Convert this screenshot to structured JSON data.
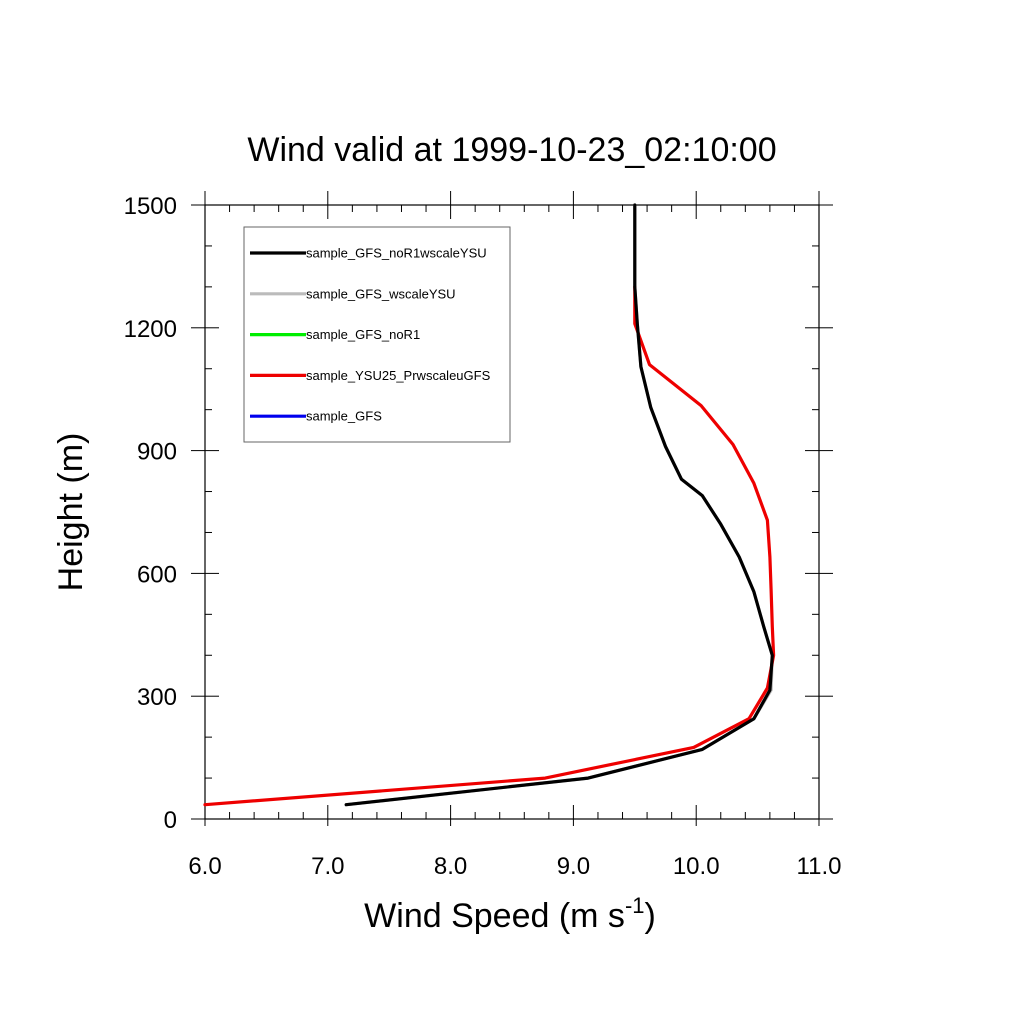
{
  "chart_data": {
    "type": "line",
    "title": "Wind valid at 1999-10-23_02:10:00",
    "xlabel": "Wind Speed (m s",
    "xlabel_superscript": "-1",
    "xlabel_suffix": ")",
    "ylabel": "Height (m)",
    "xlim": [
      6.0,
      11.0
    ],
    "ylim": [
      0,
      1500
    ],
    "xticks": [
      6.0,
      7.0,
      8.0,
      9.0,
      10.0,
      11.0
    ],
    "xtick_labels": [
      "6.0",
      "7.0",
      "8.0",
      "9.0",
      "10.0",
      "11.0"
    ],
    "yticks": [
      0,
      300,
      600,
      900,
      1200,
      1500
    ],
    "ytick_labels": [
      "0",
      "300",
      "600",
      "900",
      "1200",
      "1500"
    ],
    "grid": false,
    "legend_position": "top-left",
    "series": [
      {
        "name": "sample_GFS_noR1wscaleYSU",
        "color": "#000000",
        "x": [
          7.15,
          9.12,
          10.05,
          10.47,
          10.6,
          10.62,
          10.55,
          10.47,
          10.35,
          10.2,
          10.05,
          9.88,
          9.75,
          9.63,
          9.55,
          9.52,
          9.5,
          9.5,
          9.5
        ],
        "y": [
          35,
          100,
          170,
          245,
          315,
          400,
          470,
          555,
          640,
          720,
          790,
          830,
          910,
          1005,
          1105,
          1210,
          1300,
          1400,
          1500
        ]
      },
      {
        "name": "sample_GFS_wscaleYSU",
        "color": "#bbbbbb",
        "x": [
          7.15,
          9.12,
          10.05,
          10.47,
          10.61,
          10.62,
          10.55,
          10.47,
          10.35,
          10.2,
          10.05,
          9.88,
          9.75,
          9.63,
          9.55,
          9.52,
          9.5,
          9.5,
          9.5
        ],
        "y": [
          35,
          100,
          170,
          245,
          315,
          400,
          470,
          555,
          640,
          720,
          790,
          830,
          910,
          1005,
          1105,
          1210,
          1300,
          1400,
          1500
        ]
      },
      {
        "name": "sample_GFS_noR1",
        "color": "#00ee00",
        "x": [],
        "y": []
      },
      {
        "name": "sample_YSU25_PrwscaleuGFS",
        "color": "#ee0000",
        "x": [
          6.0,
          8.77,
          9.98,
          10.43,
          10.58,
          10.63,
          10.62,
          10.61,
          10.6,
          10.58,
          10.47,
          10.3,
          10.04,
          9.62,
          9.5,
          9.5
        ],
        "y": [
          35,
          100,
          175,
          245,
          320,
          400,
          470,
          560,
          640,
          730,
          820,
          915,
          1010,
          1110,
          1210,
          1300
        ]
      },
      {
        "name": "sample_GFS",
        "color": "#0000ee",
        "x": [],
        "y": []
      }
    ]
  }
}
